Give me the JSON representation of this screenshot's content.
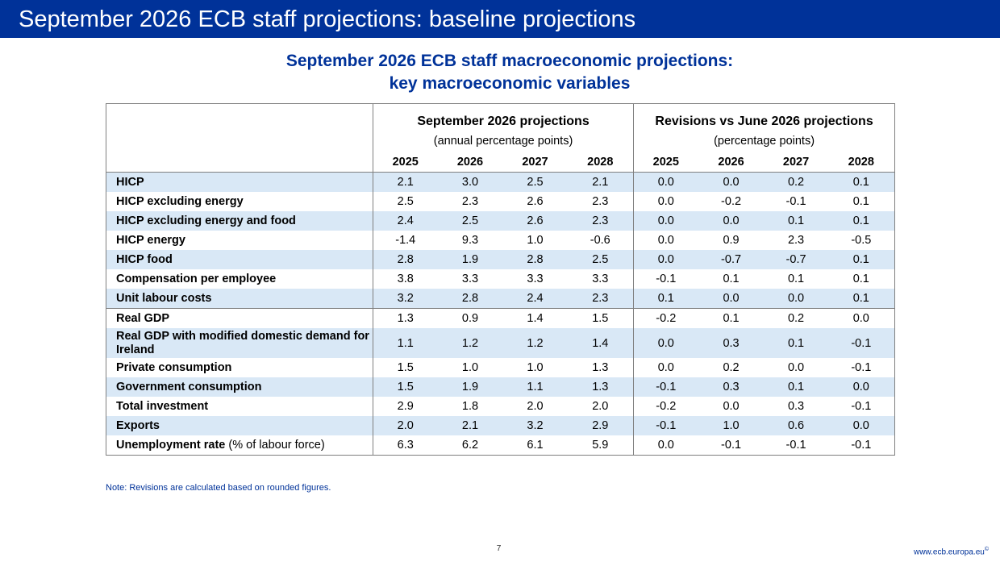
{
  "header": {
    "title": "September 2026 ECB staff projections: baseline projections"
  },
  "table": {
    "title_line1": "September 2026 ECB staff macroeconomic projections:",
    "title_line2": "key macroeconomic variables",
    "group_projections": "September 2026 projections",
    "group_revisions": "Revisions vs June 2026 projections",
    "unit_projections": "(annual percentage points)",
    "unit_revisions": "(percentage points)",
    "years": [
      "2025",
      "2026",
      "2027",
      "2028",
      "2025",
      "2026",
      "2027",
      "2028"
    ],
    "rows": [
      {
        "label": "HICP",
        "values": [
          "2.1",
          "3.0",
          "2.5",
          "2.1",
          "0.0",
          "0.0",
          "0.2",
          "0.1"
        ]
      },
      {
        "label": "HICP excluding energy",
        "values": [
          "2.5",
          "2.3",
          "2.6",
          "2.3",
          "0.0",
          "-0.2",
          "-0.1",
          "0.1"
        ]
      },
      {
        "label": "HICP excluding energy and food",
        "values": [
          "2.4",
          "2.5",
          "2.6",
          "2.3",
          "0.0",
          "0.0",
          "0.1",
          "0.1"
        ]
      },
      {
        "label": "HICP energy",
        "values": [
          "-1.4",
          "9.3",
          "1.0",
          "-0.6",
          "0.0",
          "0.9",
          "2.3",
          "-0.5"
        ]
      },
      {
        "label": "HICP food",
        "values": [
          "2.8",
          "1.9",
          "2.8",
          "2.5",
          "0.0",
          "-0.7",
          "-0.7",
          "0.1"
        ]
      },
      {
        "label": "Compensation per employee",
        "values": [
          "3.8",
          "3.3",
          "3.3",
          "3.3",
          "-0.1",
          "0.1",
          "0.1",
          "0.1"
        ]
      },
      {
        "label": "Unit labour costs",
        "values": [
          "3.2",
          "2.8",
          "2.4",
          "2.3",
          "0.1",
          "0.0",
          "0.0",
          "0.1"
        ]
      },
      {
        "label": "Real GDP",
        "values": [
          "1.3",
          "0.9",
          "1.4",
          "1.5",
          "-0.2",
          "0.1",
          "0.2",
          "0.0"
        ]
      },
      {
        "label": "Real GDP with modified domestic demand for Ireland",
        "values": [
          "1.1",
          "1.2",
          "1.2",
          "1.4",
          "0.0",
          "0.3",
          "0.1",
          "-0.1"
        ]
      },
      {
        "label": "Private consumption",
        "values": [
          "1.5",
          "1.0",
          "1.0",
          "1.3",
          "0.0",
          "0.2",
          "0.0",
          "-0.1"
        ]
      },
      {
        "label": "Government consumption",
        "values": [
          "1.5",
          "1.9",
          "1.1",
          "1.3",
          "-0.1",
          "0.3",
          "0.1",
          "0.0"
        ]
      },
      {
        "label": "Total investment",
        "values": [
          "2.9",
          "1.8",
          "2.0",
          "2.0",
          "-0.2",
          "0.0",
          "0.3",
          "-0.1"
        ]
      },
      {
        "label": "Exports",
        "values": [
          "2.0",
          "2.1",
          "3.2",
          "2.9",
          "-0.1",
          "1.0",
          "0.6",
          "0.0"
        ]
      },
      {
        "label": "Unemployment rate",
        "label_note": "(% of labour force)",
        "values": [
          "6.3",
          "6.2",
          "6.1",
          "5.9",
          "0.0",
          "-0.1",
          "-0.1",
          "-0.1"
        ]
      }
    ]
  },
  "note": "Note: Revisions are calculated based on rounded figures.",
  "footer": {
    "page_number": "7",
    "url": "www.ecb.europa.eu",
    "registered_mark": "©"
  },
  "colors": {
    "header_bg": "#003299",
    "title_blue": "#003299",
    "row_shade": "#d9e8f6",
    "border": "#7f7f7f"
  }
}
